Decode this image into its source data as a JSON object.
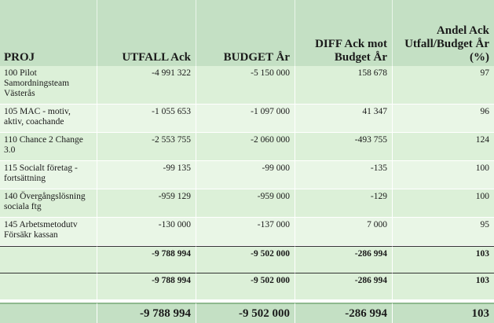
{
  "headers": {
    "proj": "PROJ",
    "utfall": "UTFALL Ack",
    "budget": "BUDGET År",
    "diff": "DIFF Ack mot Budget År",
    "andel": "Andel Ack Utfall/Budget År (%)"
  },
  "rows": [
    {
      "proj": "100 Pilot Samordningsteam Västerås",
      "utfall": "-4 991 322",
      "budget": "-5 150 000",
      "diff": "158 678",
      "andel": "97"
    },
    {
      "proj": "105 MAC - motiv, aktiv, coachande",
      "utfall": "-1 055 653",
      "budget": "-1 097 000",
      "diff": "41 347",
      "andel": "96"
    },
    {
      "proj": "110 Chance 2 Change 3.0",
      "utfall": "-2 553 755",
      "budget": "-2 060 000",
      "diff": "-493 755",
      "andel": "124"
    },
    {
      "proj": "115 Socialt företag - fortsättning",
      "utfall": "-99 135",
      "budget": "-99 000",
      "diff": "-135",
      "andel": "100"
    },
    {
      "proj": "140 Övergångslösning sociala ftg",
      "utfall": "-959 129",
      "budget": "-959 000",
      "diff": "-129",
      "andel": "100"
    },
    {
      "proj": "145 Arbetsmetodutv Försäkr kassan",
      "utfall": "-130 000",
      "budget": "-137 000",
      "diff": "7 000",
      "andel": "95"
    }
  ],
  "subtotals": [
    {
      "proj": "",
      "utfall": "-9 788 994",
      "budget": "-9 502 000",
      "diff": "-286 994",
      "andel": "103"
    },
    {
      "proj": "",
      "utfall": "-9 788 994",
      "budget": "-9 502 000",
      "diff": "-286 994",
      "andel": "103"
    }
  ],
  "grand_total": {
    "proj": "",
    "utfall": "-9 788 994",
    "budget": "-9 502 000",
    "diff": "-286 994",
    "andel": "103"
  }
}
